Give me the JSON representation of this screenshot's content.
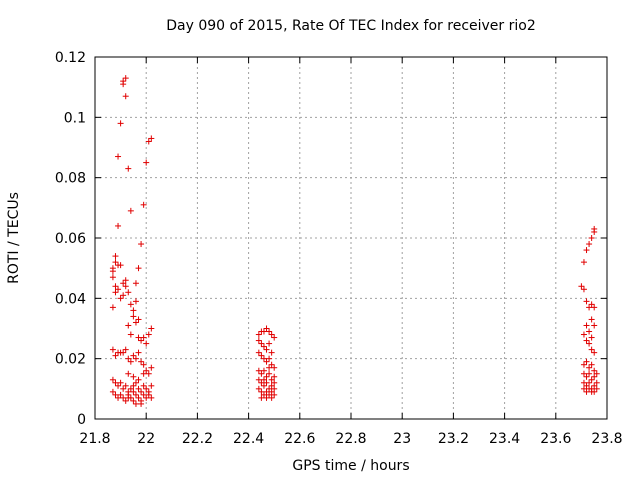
{
  "chart_data": {
    "type": "scatter",
    "title": "Day 090 of 2015, Rate Of TEC Index for receiver rio2",
    "xlabel": "GPS time / hours",
    "ylabel": "ROTI / TECUs",
    "xlim": [
      21.8,
      23.8
    ],
    "ylim": [
      0,
      0.12
    ],
    "xticks": [
      "21.8",
      "22",
      "22.2",
      "22.4",
      "22.6",
      "22.8",
      "23",
      "23.2",
      "23.4",
      "23.6",
      "23.8"
    ],
    "yticks": [
      "0",
      "0.02",
      "0.04",
      "0.06",
      "0.08",
      "0.1",
      "0.12"
    ],
    "xtick_values": [
      21.8,
      22.0,
      22.2,
      22.4,
      22.6,
      22.8,
      23.0,
      23.2,
      23.4,
      23.6,
      23.8
    ],
    "ytick_values": [
      0,
      0.02,
      0.04,
      0.06,
      0.08,
      0.1,
      0.12
    ],
    "grid": true,
    "marker": "+",
    "color": "#e00000",
    "series": [
      {
        "name": "ROTI",
        "points": [
          [
            21.87,
            0.037
          ],
          [
            21.87,
            0.047
          ],
          [
            21.87,
            0.049
          ],
          [
            21.87,
            0.05
          ],
          [
            21.88,
            0.054
          ],
          [
            21.88,
            0.052
          ],
          [
            21.88,
            0.044
          ],
          [
            21.88,
            0.042
          ],
          [
            21.89,
            0.064
          ],
          [
            21.89,
            0.087
          ],
          [
            21.89,
            0.051
          ],
          [
            21.89,
            0.043
          ],
          [
            21.9,
            0.051
          ],
          [
            21.9,
            0.098
          ],
          [
            21.9,
            0.04
          ],
          [
            21.9,
            0.022
          ],
          [
            21.91,
            0.111
          ],
          [
            21.91,
            0.112
          ],
          [
            21.91,
            0.045
          ],
          [
            21.91,
            0.041
          ],
          [
            21.92,
            0.113
          ],
          [
            21.92,
            0.107
          ],
          [
            21.92,
            0.046
          ],
          [
            21.92,
            0.044
          ],
          [
            21.93,
            0.083
          ],
          [
            21.93,
            0.042
          ],
          [
            21.93,
            0.031
          ],
          [
            21.94,
            0.069
          ],
          [
            21.94,
            0.038
          ],
          [
            21.94,
            0.028
          ],
          [
            21.95,
            0.036
          ],
          [
            21.95,
            0.034
          ],
          [
            21.96,
            0.039
          ],
          [
            21.96,
            0.045
          ],
          [
            21.96,
            0.032
          ],
          [
            21.97,
            0.033
          ],
          [
            21.97,
            0.027
          ],
          [
            21.97,
            0.05
          ],
          [
            21.98,
            0.058
          ],
          [
            21.98,
            0.026
          ],
          [
            21.99,
            0.071
          ],
          [
            21.99,
            0.027
          ],
          [
            22.0,
            0.085
          ],
          [
            22.0,
            0.025
          ],
          [
            22.01,
            0.092
          ],
          [
            22.01,
            0.028
          ],
          [
            22.02,
            0.093
          ],
          [
            22.02,
            0.03
          ],
          [
            21.87,
            0.023
          ],
          [
            21.88,
            0.021
          ],
          [
            21.89,
            0.022
          ],
          [
            21.91,
            0.022
          ],
          [
            21.92,
            0.023
          ],
          [
            21.93,
            0.02
          ],
          [
            21.94,
            0.019
          ],
          [
            21.95,
            0.021
          ],
          [
            21.96,
            0.02
          ],
          [
            21.97,
            0.022
          ],
          [
            21.98,
            0.019
          ],
          [
            21.99,
            0.018
          ],
          [
            22.0,
            0.016
          ],
          [
            22.01,
            0.015
          ],
          [
            22.02,
            0.017
          ],
          [
            21.93,
            0.015
          ],
          [
            21.95,
            0.014
          ],
          [
            21.97,
            0.013
          ],
          [
            21.99,
            0.015
          ],
          [
            21.87,
            0.013
          ],
          [
            21.88,
            0.012
          ],
          [
            21.89,
            0.011
          ],
          [
            21.9,
            0.012
          ],
          [
            21.91,
            0.01
          ],
          [
            21.92,
            0.011
          ],
          [
            21.93,
            0.009
          ],
          [
            21.94,
            0.01
          ],
          [
            21.95,
            0.011
          ],
          [
            21.96,
            0.012
          ],
          [
            21.97,
            0.01
          ],
          [
            21.98,
            0.009
          ],
          [
            21.99,
            0.011
          ],
          [
            22.0,
            0.01
          ],
          [
            22.01,
            0.009
          ],
          [
            22.02,
            0.011
          ],
          [
            21.87,
            0.009
          ],
          [
            21.88,
            0.008
          ],
          [
            21.89,
            0.007
          ],
          [
            21.9,
            0.008
          ],
          [
            21.91,
            0.007
          ],
          [
            21.92,
            0.006
          ],
          [
            21.93,
            0.008
          ],
          [
            21.94,
            0.007
          ],
          [
            21.95,
            0.006
          ],
          [
            21.96,
            0.008
          ],
          [
            21.97,
            0.007
          ],
          [
            21.98,
            0.006
          ],
          [
            21.99,
            0.008
          ],
          [
            22.0,
            0.007
          ],
          [
            22.01,
            0.008
          ],
          [
            22.02,
            0.007
          ],
          [
            21.96,
            0.005
          ],
          [
            21.98,
            0.005
          ],
          [
            21.93,
            0.007
          ],
          [
            21.95,
            0.009
          ],
          [
            22.44,
            0.028
          ],
          [
            22.45,
            0.029
          ],
          [
            22.46,
            0.029
          ],
          [
            22.47,
            0.03
          ],
          [
            22.48,
            0.029
          ],
          [
            22.49,
            0.028
          ],
          [
            22.5,
            0.027
          ],
          [
            22.44,
            0.026
          ],
          [
            22.45,
            0.025
          ],
          [
            22.46,
            0.024
          ],
          [
            22.47,
            0.023
          ],
          [
            22.48,
            0.025
          ],
          [
            22.49,
            0.022
          ],
          [
            22.44,
            0.022
          ],
          [
            22.45,
            0.021
          ],
          [
            22.46,
            0.02
          ],
          [
            22.47,
            0.019
          ],
          [
            22.48,
            0.02
          ],
          [
            22.49,
            0.018
          ],
          [
            22.5,
            0.017
          ],
          [
            22.44,
            0.016
          ],
          [
            22.45,
            0.015
          ],
          [
            22.46,
            0.016
          ],
          [
            22.47,
            0.014
          ],
          [
            22.48,
            0.015
          ],
          [
            22.49,
            0.013
          ],
          [
            22.5,
            0.014
          ],
          [
            22.44,
            0.013
          ],
          [
            22.45,
            0.012
          ],
          [
            22.46,
            0.011
          ],
          [
            22.47,
            0.012
          ],
          [
            22.48,
            0.01
          ],
          [
            22.49,
            0.011
          ],
          [
            22.5,
            0.012
          ],
          [
            22.44,
            0.01
          ],
          [
            22.45,
            0.009
          ],
          [
            22.46,
            0.008
          ],
          [
            22.47,
            0.009
          ],
          [
            22.48,
            0.008
          ],
          [
            22.49,
            0.007
          ],
          [
            22.5,
            0.008
          ],
          [
            22.45,
            0.007
          ],
          [
            22.47,
            0.007
          ],
          [
            22.49,
            0.009
          ],
          [
            22.46,
            0.013
          ],
          [
            22.48,
            0.017
          ],
          [
            22.5,
            0.01
          ],
          [
            23.7,
            0.044
          ],
          [
            23.71,
            0.052
          ],
          [
            23.71,
            0.043
          ],
          [
            23.72,
            0.056
          ],
          [
            23.72,
            0.039
          ],
          [
            23.72,
            0.031
          ],
          [
            23.73,
            0.058
          ],
          [
            23.73,
            0.037
          ],
          [
            23.73,
            0.029
          ],
          [
            23.74,
            0.06
          ],
          [
            23.74,
            0.038
          ],
          [
            23.74,
            0.033
          ],
          [
            23.75,
            0.062
          ],
          [
            23.75,
            0.063
          ],
          [
            23.75,
            0.037
          ],
          [
            23.75,
            0.031
          ],
          [
            23.71,
            0.028
          ],
          [
            23.72,
            0.026
          ],
          [
            23.73,
            0.025
          ],
          [
            23.74,
            0.023
          ],
          [
            23.75,
            0.022
          ],
          [
            23.71,
            0.018
          ],
          [
            23.72,
            0.019
          ],
          [
            23.73,
            0.017
          ],
          [
            23.74,
            0.018
          ],
          [
            23.75,
            0.016
          ],
          [
            23.71,
            0.015
          ],
          [
            23.72,
            0.014
          ],
          [
            23.73,
            0.015
          ],
          [
            23.74,
            0.013
          ],
          [
            23.75,
            0.014
          ],
          [
            23.71,
            0.012
          ],
          [
            23.72,
            0.011
          ],
          [
            23.73,
            0.012
          ],
          [
            23.74,
            0.01
          ],
          [
            23.75,
            0.011
          ],
          [
            23.71,
            0.01
          ],
          [
            23.72,
            0.009
          ],
          [
            23.73,
            0.01
          ],
          [
            23.74,
            0.009
          ],
          [
            23.75,
            0.009
          ],
          [
            23.76,
            0.012
          ],
          [
            23.76,
            0.01
          ],
          [
            23.76,
            0.015
          ],
          [
            23.74,
            0.027
          ]
        ]
      }
    ]
  }
}
